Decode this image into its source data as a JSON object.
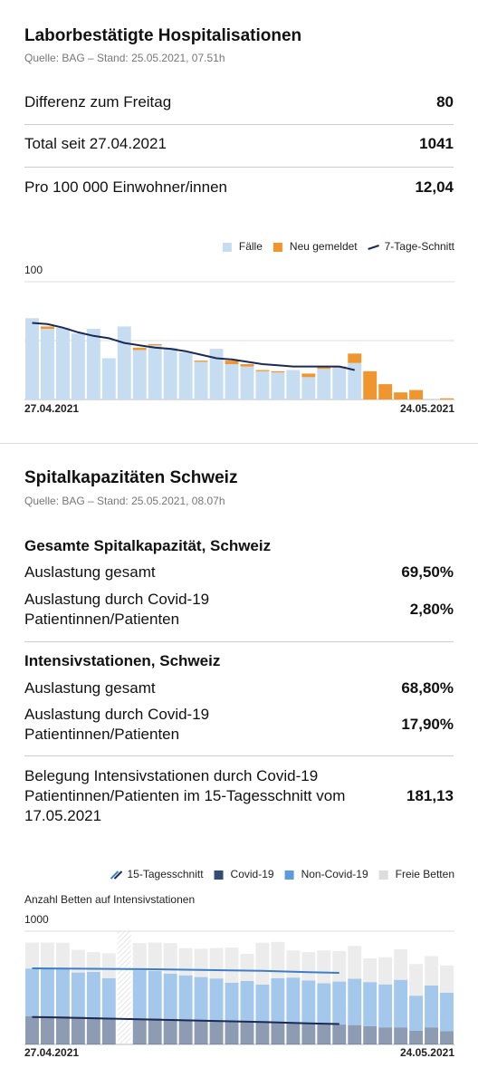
{
  "hospitalisations": {
    "title": "Laborbestätigte Hospitalisationen",
    "source": "Quelle: BAG – Stand: 25.05.2021, 07.51h",
    "rows": [
      {
        "label": "Differenz zum Freitag",
        "value": "80"
      },
      {
        "label": "Total seit 27.04.2021",
        "value": "1041"
      },
      {
        "label": "Pro 100 000 Einwohner/innen",
        "value": "12,04"
      }
    ]
  },
  "capacity": {
    "title": "Spitalkapazitäten Schweiz",
    "source": "Quelle: BAG – Stand: 25.05.2021, 08.07h",
    "groups": [
      {
        "heading": "Gesamte Spitalkapazität, Schweiz",
        "rows": [
          {
            "label": "Auslastung gesamt",
            "value": "69,50%"
          },
          {
            "label": "Auslastung durch Covid-19 Patientinnen/Patienten",
            "value": "2,80%"
          }
        ]
      },
      {
        "heading": "Intensivstationen, Schweiz",
        "rows": [
          {
            "label": "Auslastung gesamt",
            "value": "68,80%"
          },
          {
            "label": "Auslastung durch Covid-19 Patientinnen/Patienten",
            "value": "17,90%"
          }
        ]
      }
    ],
    "summary": {
      "label": "Belegung Intensivstationen durch Covid-19 Patientinnen/Patienten im 15-Tagesschnitt vom 17.05.2021",
      "value": "181,13"
    }
  },
  "chart_data": [
    {
      "type": "bar",
      "stacked": true,
      "categories": [
        "27.04.2021",
        null,
        null,
        null,
        null,
        null,
        null,
        null,
        null,
        null,
        null,
        null,
        null,
        null,
        null,
        null,
        null,
        null,
        null,
        null,
        null,
        null,
        null,
        null,
        null,
        null,
        null,
        "24.05.2021"
      ],
      "series": [
        {
          "name": "Fälle",
          "color": "#c6dcf1",
          "values": [
            69,
            60,
            61,
            56,
            60,
            35,
            62,
            42,
            46,
            44,
            40,
            32,
            43,
            30,
            28,
            24,
            23,
            25,
            19,
            26,
            27,
            31,
            0,
            0,
            0,
            0,
            0,
            0
          ]
        },
        {
          "name": "Neu gemeldet",
          "color": "#f0962e",
          "values": [
            0,
            2,
            0,
            0,
            0,
            0,
            0,
            2,
            1,
            0,
            0,
            1,
            0,
            3,
            2,
            1,
            1,
            0,
            3,
            2,
            1,
            8,
            24,
            13,
            6,
            8,
            0,
            1
          ]
        },
        {
          "name": "7-Tage-Schnitt",
          "type": "line",
          "color": "#1b2a55",
          "values": [
            65,
            64,
            61,
            57,
            54,
            52,
            48,
            46,
            44,
            43,
            41,
            38,
            35,
            34,
            32,
            30,
            29,
            28,
            28,
            28,
            28,
            25,
            null,
            null,
            null,
            null,
            null,
            null
          ]
        }
      ],
      "ylim": [
        0,
        100
      ],
      "yticks": [
        {
          "value": 50,
          "label": null
        },
        100
      ],
      "grid": true,
      "legend": "top-right"
    },
    {
      "type": "bar",
      "stacked": true,
      "y_label": "Anzahl Betten auf Intensivstationen",
      "categories": [
        "27.04.2021",
        null,
        null,
        null,
        null,
        null,
        null,
        null,
        null,
        null,
        null,
        null,
        null,
        null,
        null,
        null,
        null,
        null,
        null,
        null,
        null,
        null,
        null,
        null,
        null,
        null,
        null,
        "24.05.2021"
      ],
      "series": [
        {
          "name": "Covid-19",
          "color": "#1b3a66",
          "values": [
            250,
            250,
            248,
            245,
            240,
            235,
            null,
            225,
            230,
            225,
            220,
            215,
            212,
            205,
            200,
            198,
            195,
            190,
            185,
            180,
            175,
            170,
            160,
            150,
            150,
            120,
            150,
            117
          ]
        },
        {
          "name": "Non-Covid-19",
          "color": "#4a90d9",
          "values": [
            420,
            420,
            420,
            390,
            400,
            350,
            null,
            430,
            420,
            400,
            390,
            380,
            370,
            340,
            360,
            330,
            390,
            400,
            380,
            360,
            380,
            410,
            390,
            380,
            420,
            310,
            370,
            340
          ]
        },
        {
          "name": "Freie Betten",
          "color": "#d9d9d9",
          "values": [
            230,
            230,
            230,
            200,
            175,
            220,
            null,
            240,
            250,
            270,
            240,
            250,
            270,
            310,
            240,
            370,
            320,
            240,
            250,
            290,
            270,
            290,
            210,
            240,
            270,
            280,
            260,
            240
          ]
        }
      ],
      "average": {
        "name": "15-Tagesschnitt",
        "lines": [
          {
            "color": "#3d7fc6",
            "values": [
              672,
              671,
              670,
              669,
              668,
              667,
              666,
              665,
              664,
              662,
              660,
              658,
              656,
              654,
              652,
              650,
              646,
              642,
              638,
              635,
              632,
              null,
              null,
              null,
              null,
              null,
              null,
              null
            ]
          },
          {
            "color": "#1b2a55",
            "values": [
              242,
              240,
              237,
              234,
              231,
              228,
              225,
              222,
              219,
              216,
              213,
              210,
              207,
              204,
              201,
              198,
              194,
              190,
              186,
              183,
              180,
              null,
              null,
              null,
              null,
              null,
              null,
              null
            ]
          }
        ]
      },
      "ylim": [
        0,
        1000
      ],
      "yticks": [
        1000
      ],
      "grid": true,
      "legend": "top-right"
    }
  ]
}
